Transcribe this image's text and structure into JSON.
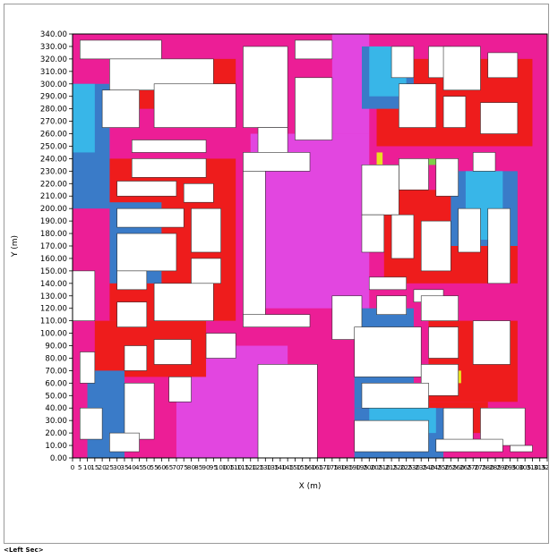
{
  "caption": "<Left Sec>",
  "colors": {
    "background_level": "#ec1e96",
    "level_magenta": "#e246e0",
    "level_red": "#ee1c1c",
    "level_blue": "#3a7bc8",
    "level_cyan": "#38b6e8",
    "level_yellow": "#e8e020",
    "level_green": "#7ed048",
    "building": "#ffffff"
  },
  "chart_data": {
    "type": "heatmap",
    "title": "",
    "xlabel": "X (m)",
    "ylabel": "Y (m)",
    "xlim": [
      0,
      320
    ],
    "ylim": [
      0,
      340
    ],
    "grid": false,
    "y_ticks": [
      "0.00",
      "10.00",
      "20.00",
      "30.00",
      "40.00",
      "50.00",
      "60.00",
      "70.00",
      "80.00",
      "90.00",
      "100.00",
      "110.00",
      "120.00",
      "130.00",
      "140.00",
      "150.00",
      "160.00",
      "170.00",
      "180.00",
      "190.00",
      "200.00",
      "210.00",
      "220.00",
      "230.00",
      "240.00",
      "250.00",
      "260.00",
      "270.00",
      "280.00",
      "290.00",
      "300.00",
      "310.00",
      "320.00",
      "330.00",
      "340.00"
    ],
    "x_ticks": [
      0,
      5,
      10,
      15,
      20,
      25,
      30,
      35,
      40,
      45,
      50,
      55,
      60,
      65,
      70,
      75,
      80,
      85,
      90,
      95,
      100,
      105,
      110,
      115,
      120,
      125,
      130,
      135,
      140,
      145,
      150,
      155,
      160,
      165,
      170,
      175,
      180,
      185,
      190,
      195,
      200,
      205,
      210,
      215,
      220,
      225,
      230,
      235,
      240,
      245,
      250,
      255,
      260,
      265,
      270,
      275,
      280,
      285,
      290,
      295,
      300,
      305,
      310,
      315,
      320
    ],
    "zones": [
      {
        "level": "magenta",
        "x": [
          175,
          200
        ],
        "y": [
          260,
          340
        ]
      },
      {
        "level": "magenta",
        "x": [
          120,
          200
        ],
        "y": [
          120,
          260
        ]
      },
      {
        "level": "magenta",
        "x": [
          70,
          145
        ],
        "y": [
          0,
          90
        ]
      },
      {
        "level": "red",
        "x": [
          30,
          110
        ],
        "y": [
          280,
          320
        ]
      },
      {
        "level": "red",
        "x": [
          25,
          110
        ],
        "y": [
          110,
          240
        ]
      },
      {
        "level": "red",
        "x": [
          15,
          90
        ],
        "y": [
          65,
          110
        ]
      },
      {
        "level": "red",
        "x": [
          205,
          310
        ],
        "y": [
          250,
          320
        ]
      },
      {
        "level": "red",
        "x": [
          210,
          300
        ],
        "y": [
          140,
          215
        ]
      },
      {
        "level": "red",
        "x": [
          220,
          280
        ],
        "y": [
          20,
          45
        ]
      },
      {
        "level": "red",
        "x": [
          240,
          300
        ],
        "y": [
          45,
          110
        ]
      },
      {
        "level": "blue",
        "x": [
          0,
          25
        ],
        "y": [
          200,
          300
        ]
      },
      {
        "level": "blue",
        "x": [
          25,
          60
        ],
        "y": [
          140,
          205
        ]
      },
      {
        "level": "blue",
        "x": [
          10,
          35
        ],
        "y": [
          0,
          70
        ]
      },
      {
        "level": "blue",
        "x": [
          190,
          230
        ],
        "y": [
          40,
          120
        ]
      },
      {
        "level": "blue",
        "x": [
          255,
          300
        ],
        "y": [
          170,
          230
        ]
      },
      {
        "level": "blue",
        "x": [
          190,
          250
        ],
        "y": [
          0,
          40
        ]
      },
      {
        "level": "blue",
        "x": [
          195,
          230
        ],
        "y": [
          280,
          330
        ]
      },
      {
        "level": "cyan",
        "x": [
          200,
          225
        ],
        "y": [
          290,
          330
        ]
      },
      {
        "level": "cyan",
        "x": [
          0,
          15
        ],
        "y": [
          245,
          300
        ]
      },
      {
        "level": "cyan",
        "x": [
          265,
          290
        ],
        "y": [
          175,
          230
        ]
      },
      {
        "level": "cyan",
        "x": [
          200,
          245
        ],
        "y": [
          20,
          40
        ]
      },
      {
        "level": "yellow",
        "x": [
          258,
          262
        ],
        "y": [
          60,
          70
        ]
      },
      {
        "level": "yellow",
        "x": [
          205,
          209
        ],
        "y": [
          235,
          245
        ]
      },
      {
        "level": "green",
        "x": [
          240,
          246
        ],
        "y": [
          235,
          240
        ]
      }
    ],
    "buildings": [
      {
        "x": [
          5,
          60
        ],
        "y": [
          320,
          335
        ]
      },
      {
        "x": [
          25,
          95
        ],
        "y": [
          295,
          320
        ]
      },
      {
        "x": [
          20,
          45
        ],
        "y": [
          265,
          295
        ]
      },
      {
        "x": [
          55,
          110
        ],
        "y": [
          265,
          300
        ]
      },
      {
        "x": [
          115,
          145
        ],
        "y": [
          265,
          330
        ]
      },
      {
        "x": [
          125,
          145
        ],
        "y": [
          240,
          265
        ]
      },
      {
        "x": [
          150,
          175
        ],
        "y": [
          320,
          335
        ]
      },
      {
        "x": [
          150,
          175
        ],
        "y": [
          255,
          305
        ]
      },
      {
        "x": [
          40,
          90
        ],
        "y": [
          245,
          255
        ]
      },
      {
        "x": [
          40,
          90
        ],
        "y": [
          225,
          240
        ]
      },
      {
        "x": [
          30,
          70
        ],
        "y": [
          210,
          222
        ]
      },
      {
        "x": [
          75,
          95
        ],
        "y": [
          205,
          220
        ]
      },
      {
        "x": [
          30,
          75
        ],
        "y": [
          185,
          200
        ]
      },
      {
        "x": [
          80,
          100
        ],
        "y": [
          165,
          200
        ]
      },
      {
        "x": [
          30,
          70
        ],
        "y": [
          150,
          180
        ]
      },
      {
        "x": [
          80,
          100
        ],
        "y": [
          140,
          160
        ]
      },
      {
        "x": [
          115,
          160
        ],
        "y": [
          230,
          245
        ]
      },
      {
        "x": [
          115,
          130
        ],
        "y": [
          110,
          230
        ]
      },
      {
        "x": [
          115,
          160
        ],
        "y": [
          105,
          115
        ]
      },
      {
        "x": [
          0,
          15
        ],
        "y": [
          110,
          150
        ]
      },
      {
        "x": [
          30,
          50
        ],
        "y": [
          135,
          150
        ]
      },
      {
        "x": [
          55,
          95
        ],
        "y": [
          110,
          140
        ]
      },
      {
        "x": [
          30,
          50
        ],
        "y": [
          105,
          125
        ]
      },
      {
        "x": [
          5,
          15
        ],
        "y": [
          60,
          85
        ]
      },
      {
        "x": [
          35,
          50
        ],
        "y": [
          70,
          90
        ]
      },
      {
        "x": [
          55,
          80
        ],
        "y": [
          75,
          95
        ]
      },
      {
        "x": [
          90,
          110
        ],
        "y": [
          80,
          100
        ]
      },
      {
        "x": [
          5,
          20
        ],
        "y": [
          15,
          40
        ]
      },
      {
        "x": [
          35,
          55
        ],
        "y": [
          15,
          60
        ]
      },
      {
        "x": [
          25,
          45
        ],
        "y": [
          5,
          20
        ]
      },
      {
        "x": [
          65,
          80
        ],
        "y": [
          45,
          65
        ]
      },
      {
        "x": [
          125,
          165
        ],
        "y": [
          0,
          75
        ]
      },
      {
        "x": [
          215,
          230
        ],
        "y": [
          305,
          330
        ]
      },
      {
        "x": [
          240,
          255
        ],
        "y": [
          305,
          330
        ]
      },
      {
        "x": [
          250,
          275
        ],
        "y": [
          295,
          330
        ]
      },
      {
        "x": [
          280,
          300
        ],
        "y": [
          305,
          325
        ]
      },
      {
        "x": [
          220,
          245
        ],
        "y": [
          265,
          300
        ]
      },
      {
        "x": [
          250,
          265
        ],
        "y": [
          265,
          290
        ]
      },
      {
        "x": [
          275,
          300
        ],
        "y": [
          260,
          285
        ]
      },
      {
        "x": [
          220,
          240
        ],
        "y": [
          215,
          240
        ]
      },
      {
        "x": [
          245,
          260
        ],
        "y": [
          210,
          240
        ]
      },
      {
        "x": [
          270,
          285
        ],
        "y": [
          230,
          245
        ]
      },
      {
        "x": [
          195,
          220
        ],
        "y": [
          195,
          235
        ]
      },
      {
        "x": [
          195,
          210
        ],
        "y": [
          165,
          195
        ]
      },
      {
        "x": [
          215,
          230
        ],
        "y": [
          160,
          195
        ]
      },
      {
        "x": [
          235,
          255
        ],
        "y": [
          150,
          190
        ]
      },
      {
        "x": [
          260,
          275
        ],
        "y": [
          165,
          200
        ]
      },
      {
        "x": [
          280,
          295
        ],
        "y": [
          140,
          200
        ]
      },
      {
        "x": [
          200,
          225
        ],
        "y": [
          135,
          145
        ]
      },
      {
        "x": [
          230,
          250
        ],
        "y": [
          125,
          135
        ]
      },
      {
        "x": [
          175,
          195
        ],
        "y": [
          95,
          130
        ]
      },
      {
        "x": [
          205,
          225
        ],
        "y": [
          115,
          130
        ]
      },
      {
        "x": [
          235,
          260
        ],
        "y": [
          110,
          130
        ]
      },
      {
        "x": [
          190,
          235
        ],
        "y": [
          65,
          105
        ]
      },
      {
        "x": [
          240,
          260
        ],
        "y": [
          80,
          105
        ]
      },
      {
        "x": [
          270,
          295
        ],
        "y": [
          75,
          110
        ]
      },
      {
        "x": [
          235,
          260
        ],
        "y": [
          50,
          75
        ]
      },
      {
        "x": [
          195,
          240
        ],
        "y": [
          40,
          60
        ]
      },
      {
        "x": [
          250,
          270
        ],
        "y": [
          10,
          40
        ]
      },
      {
        "x": [
          275,
          305
        ],
        "y": [
          10,
          40
        ]
      },
      {
        "x": [
          190,
          240
        ],
        "y": [
          5,
          30
        ]
      },
      {
        "x": [
          245,
          290
        ],
        "y": [
          5,
          15
        ]
      },
      {
        "x": [
          295,
          310
        ],
        "y": [
          5,
          10
        ]
      }
    ]
  }
}
